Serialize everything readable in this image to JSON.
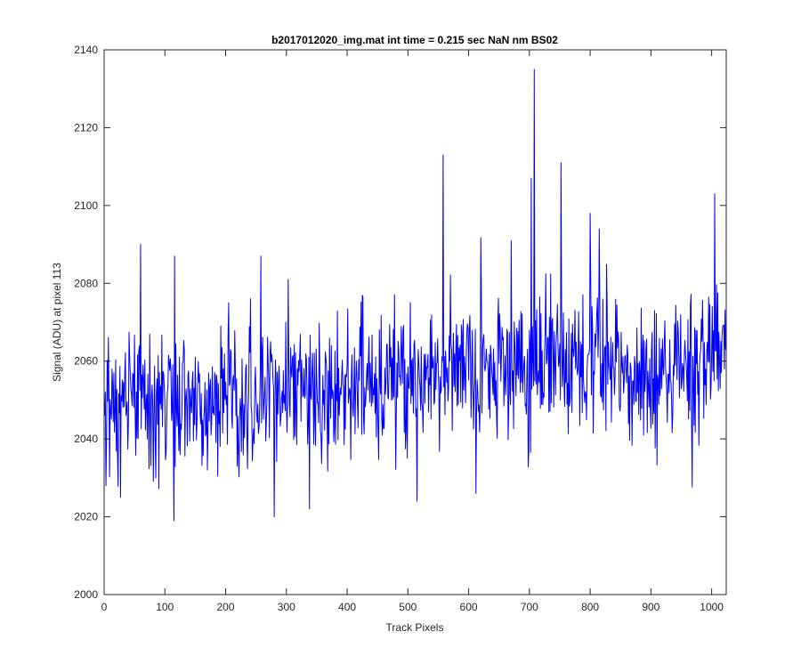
{
  "chart_data": {
    "type": "line",
    "title": "b2017012020_img.mat int time = 0.215 sec  NaN nm BS02",
    "xlabel": "Track Pixels",
    "ylabel": "Signal (ADU) at pixel 113",
    "xlim": [
      0,
      1024
    ],
    "ylim": [
      2000,
      2140
    ],
    "xticks": [
      0,
      100,
      200,
      300,
      400,
      500,
      600,
      700,
      800,
      900,
      1000
    ],
    "yticks": [
      2000,
      2020,
      2040,
      2060,
      2080,
      2100,
      2120,
      2140
    ],
    "grid": false,
    "legend": "none",
    "series": [
      {
        "color": "#0000ff",
        "x_start": 1,
        "x_step": 1,
        "trend": {
          "x": [
            0,
            200,
            400,
            500,
            600,
            700,
            800,
            900,
            1024
          ],
          "y": [
            2050,
            2049,
            2052,
            2056,
            2059,
            2060,
            2060,
            2058,
            2060
          ]
        },
        "noise_sd": 9,
        "peaks": [
          {
            "x": 3,
            "y": 2028
          },
          {
            "x": 13,
            "y": 2058
          },
          {
            "x": 27,
            "y": 2025
          },
          {
            "x": 60,
            "y": 2090
          },
          {
            "x": 85,
            "y": 2030
          },
          {
            "x": 115,
            "y": 2019
          },
          {
            "x": 116,
            "y": 2087
          },
          {
            "x": 205,
            "y": 2075
          },
          {
            "x": 258,
            "y": 2087
          },
          {
            "x": 280,
            "y": 2020
          },
          {
            "x": 303,
            "y": 2081
          },
          {
            "x": 338,
            "y": 2022
          },
          {
            "x": 515,
            "y": 2024
          },
          {
            "x": 558,
            "y": 2113
          },
          {
            "x": 612,
            "y": 2026
          },
          {
            "x": 670,
            "y": 2091
          },
          {
            "x": 703,
            "y": 2107
          },
          {
            "x": 708,
            "y": 2135
          },
          {
            "x": 752,
            "y": 2111
          },
          {
            "x": 800,
            "y": 2098
          },
          {
            "x": 815,
            "y": 2094
          },
          {
            "x": 1005,
            "y": 2103
          }
        ]
      }
    ]
  }
}
